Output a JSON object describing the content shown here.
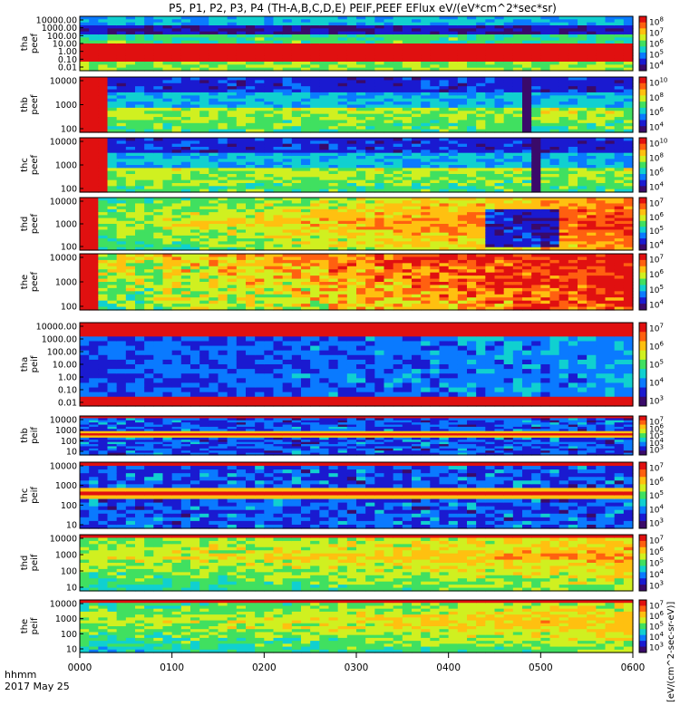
{
  "figure": {
    "title": "P5, P1, P2, P3, P4 (TH-A,B,C,D,E) PEIF,PEEF EFlux eV/(eV*cm^2*sec*sr)",
    "time_label": "hhmm",
    "date_label": "2017 May 25",
    "colorbar_label": "[eV/(cm^2-sec-sr-eV)]"
  },
  "chart_data": {
    "type": "heatmap",
    "x_ticks": [
      "0000",
      "0100",
      "0200",
      "0300",
      "0400",
      "0500",
      "0600"
    ],
    "panels": [
      {
        "ylabel": [
          "tha",
          "peef"
        ],
        "y_ticks": [
          "10000.00",
          "1000.00",
          "100.00",
          "10.00",
          "1.00",
          "0.10",
          "0.01"
        ],
        "cb_ticks": [
          "10^8",
          "10^7",
          "10^6",
          "10^5",
          "10^4"
        ],
        "pattern": "tha_peef"
      },
      {
        "ylabel": [
          "thb",
          "peef"
        ],
        "y_ticks": [
          "10000",
          "1000",
          "100"
        ],
        "cb_ticks": [
          "10^10",
          "10^8",
          "10^6",
          "10^4"
        ],
        "pattern": "thb_peef"
      },
      {
        "ylabel": [
          "thc",
          "peef"
        ],
        "y_ticks": [
          "10000",
          "1000",
          "100"
        ],
        "cb_ticks": [
          "10^10",
          "10^8",
          "10^6",
          "10^4"
        ],
        "pattern": "thc_peef"
      },
      {
        "ylabel": [
          "thd",
          "peef"
        ],
        "y_ticks": [
          "10000",
          "1000",
          "100"
        ],
        "cb_ticks": [
          "10^7",
          "10^6",
          "10^5",
          "10^4"
        ],
        "pattern": "thd_peef"
      },
      {
        "ylabel": [
          "the",
          "peef"
        ],
        "y_ticks": [
          "10000",
          "1000",
          "100"
        ],
        "cb_ticks": [
          "10^7",
          "10^6",
          "10^5",
          "10^4"
        ],
        "pattern": "the_peef"
      },
      {
        "ylabel": [
          "tha",
          "peif"
        ],
        "y_ticks": [
          "10000.00",
          "1000.00",
          "100.00",
          "10.00",
          "1.00",
          "0.10",
          "0.01"
        ],
        "cb_ticks": [
          "10^7",
          "10^6",
          "10^5",
          "10^4",
          "10^3"
        ],
        "pattern": "tha_peif"
      },
      {
        "ylabel": [
          "thb",
          "peif"
        ],
        "y_ticks": [
          "10000",
          "1000",
          "100",
          "10"
        ],
        "cb_ticks": [
          "10^7",
          "10^6",
          "10^5",
          "10^4",
          "10^3"
        ],
        "pattern": "thb_peif"
      },
      {
        "ylabel": [
          "thc",
          "peif"
        ],
        "y_ticks": [
          "10000",
          "1000",
          "100",
          "10"
        ],
        "cb_ticks": [
          "10^7",
          "10^6",
          "10^5",
          "10^4",
          "10^3"
        ],
        "pattern": "thc_peif"
      },
      {
        "ylabel": [
          "thd",
          "peif"
        ],
        "y_ticks": [
          "10000",
          "1000",
          "100",
          "10"
        ],
        "cb_ticks": [
          "10^7",
          "10^6",
          "10^5",
          "10^4",
          "10^3"
        ],
        "pattern": "thd_peif"
      },
      {
        "ylabel": [
          "the",
          "peif"
        ],
        "y_ticks": [
          "10000",
          "1000",
          "100",
          "10"
        ],
        "cb_ticks": [
          "10^7",
          "10^6",
          "10^5",
          "10^4",
          "10^3"
        ],
        "pattern": "the_peif"
      }
    ],
    "colormap": [
      "#3a0a6a",
      "#1a1ad0",
      "#0a7aff",
      "#10d0d0",
      "#40e060",
      "#d0f020",
      "#ffc010",
      "#ff6010",
      "#e01010"
    ]
  }
}
